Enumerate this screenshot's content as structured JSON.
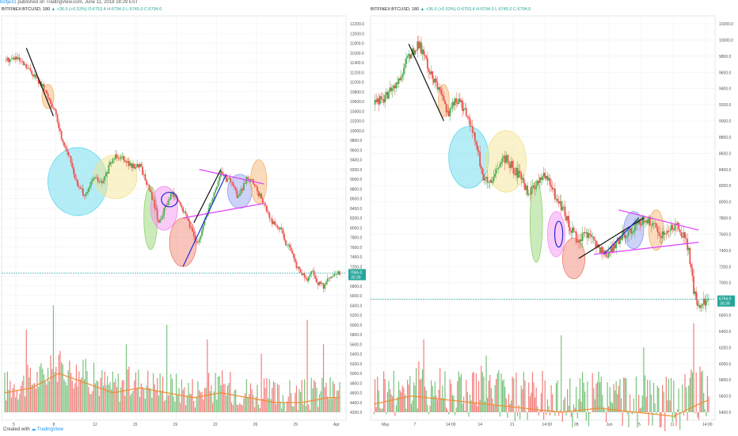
{
  "header": {
    "author": "bcltje31",
    "text": "published on TradingView.com, June 11, 2018 18:29 EST"
  },
  "colors": {
    "up": "#4caf50",
    "down": "#ef5350",
    "grid": "#eef0f3",
    "ma": "#f08c2e",
    "trend_pink": "#e040fb",
    "trend_blue": "#1e2bd6",
    "trend_black": "#111111",
    "last_line": "#26a69a",
    "ellipse_cyan": "#5ad8ee",
    "ellipse_yellow": "#f3e28a",
    "ellipse_orange": "#f5b26a",
    "ellipse_pink": "#f48cf0",
    "ellipse_green": "#8fd36a",
    "ellipse_red": "#f07c6a",
    "ellipse_purple": "#8e9cf0"
  },
  "footer": {
    "created_with": "Created with",
    "brand": "TradingView"
  },
  "chart_data": [
    {
      "type": "candlestick",
      "symbol": "BITFINEX:BTCUSD, 180",
      "change": "▲ +36.0 (+0.53%)",
      "ohlc": "O:6753.4 H:6794.0 L:6745.0 C:6794.0",
      "price_ticks": [
        "12200.0",
        "12000.0",
        "11800.0",
        "11600.0",
        "11400.0",
        "11200.0",
        "11000.0",
        "10800.0",
        "10600.0",
        "10400.0",
        "10200.0",
        "10000.0",
        "9800.0",
        "9600.0",
        "9400.0",
        "9200.0",
        "9000.0",
        "8800.0",
        "8600.0",
        "8400.0",
        "8200.0",
        "8000.0",
        "7800.0",
        "7600.0",
        "7400.0",
        "7200.0",
        "7000.0",
        "6800.0",
        "6600.0",
        "6400.0",
        "6200.0",
        "6000.0",
        "5800.0",
        "5600.0",
        "5400.0",
        "5200.0",
        "5000.0",
        "4800.0",
        "4600.0",
        "4400.0",
        "4200.0"
      ],
      "ylim": [
        6500,
        12300
      ],
      "x_labels": [
        "5",
        "8",
        "12",
        "15",
        "19",
        "22",
        "26",
        "29",
        "Apr"
      ],
      "last_price": "7066.0",
      "countdown": "30:39",
      "price_path": [
        [
          0,
          11450
        ],
        [
          4,
          11500
        ],
        [
          7,
          11350
        ],
        [
          10,
          11200
        ],
        [
          14,
          10900
        ],
        [
          17,
          10600
        ],
        [
          19,
          10300
        ],
        [
          21,
          9850
        ],
        [
          23,
          9600
        ],
        [
          25,
          9250
        ],
        [
          27,
          8850
        ],
        [
          30,
          8650
        ],
        [
          33,
          9050
        ],
        [
          36,
          8900
        ],
        [
          39,
          9300
        ],
        [
          41,
          9500
        ],
        [
          44,
          9450
        ],
        [
          47,
          9250
        ],
        [
          50,
          9300
        ],
        [
          52,
          9000
        ],
        [
          55,
          8550
        ],
        [
          57,
          8100
        ],
        [
          60,
          8500
        ],
        [
          62,
          8700
        ],
        [
          64,
          8550
        ],
        [
          66,
          8350
        ],
        [
          68,
          8150
        ],
        [
          70,
          7800
        ],
        [
          72,
          7700
        ],
        [
          74,
          8150
        ],
        [
          76,
          8500
        ],
        [
          78,
          8800
        ],
        [
          80,
          9150
        ],
        [
          82,
          9000
        ],
        [
          84,
          8950
        ],
        [
          86,
          8650
        ],
        [
          88,
          8800
        ],
        [
          90,
          9050
        ],
        [
          92,
          8900
        ],
        [
          94,
          8700
        ],
        [
          96,
          8500
        ],
        [
          98,
          8200
        ],
        [
          100,
          8050
        ],
        [
          102,
          8000
        ],
        [
          104,
          7700
        ],
        [
          106,
          7500
        ],
        [
          108,
          7200
        ],
        [
          110,
          7050
        ],
        [
          112,
          6900
        ],
        [
          114,
          7100
        ],
        [
          116,
          6850
        ],
        [
          118,
          6800
        ],
        [
          120,
          6950
        ],
        [
          122,
          7000
        ],
        [
          124,
          7066
        ]
      ],
      "volume_path": [
        [
          0,
          4600
        ],
        [
          10,
          4700
        ],
        [
          20,
          5000
        ],
        [
          30,
          4800
        ],
        [
          40,
          4600
        ],
        [
          50,
          4700
        ],
        [
          60,
          4600
        ],
        [
          70,
          4500
        ],
        [
          80,
          4600
        ],
        [
          90,
          4500
        ],
        [
          100,
          4400
        ],
        [
          110,
          4400
        ],
        [
          120,
          4500
        ],
        [
          124,
          4500
        ]
      ],
      "volume_spikes": [
        [
          8,
          5900
        ],
        [
          18,
          6400
        ],
        [
          30,
          5300
        ],
        [
          45,
          5600
        ],
        [
          60,
          6000
        ],
        [
          75,
          5700
        ],
        [
          95,
          5400
        ],
        [
          112,
          6100
        ],
        [
          118,
          5600
        ]
      ],
      "trend_lines": [
        {
          "color": "trend_black",
          "from": [
            8,
            11700
          ],
          "to": [
            18,
            10300
          ]
        },
        {
          "color": "trend_pink",
          "from": [
            72,
            9200
          ],
          "to": [
            96,
            8900
          ]
        },
        {
          "color": "trend_pink",
          "from": [
            66,
            8200
          ],
          "to": [
            96,
            8500
          ]
        },
        {
          "color": "trend_black",
          "from": [
            70,
            8100
          ],
          "to": [
            80,
            9200
          ]
        },
        {
          "color": "trend_blue",
          "from": [
            66,
            7200
          ],
          "to": [
            82,
            9100
          ]
        }
      ],
      "ellipses": [
        {
          "color": "ellipse_orange",
          "cx": 16,
          "cy": 10700,
          "rx": 2.2,
          "ry": 250
        },
        {
          "color": "ellipse_cyan",
          "cx": 27,
          "cy": 8950,
          "rx": 11,
          "ry": 700
        },
        {
          "color": "ellipse_yellow",
          "cx": 41,
          "cy": 9050,
          "rx": 8,
          "ry": 450
        },
        {
          "color": "ellipse_green",
          "cx": 54,
          "cy": 8200,
          "rx": 2.5,
          "ry": 650
        },
        {
          "color": "ellipse_pink",
          "cx": 59,
          "cy": 8400,
          "rx": 5,
          "ry": 450
        },
        {
          "color": "ellipse_red",
          "cx": 66,
          "cy": 7700,
          "rx": 5,
          "ry": 500
        },
        {
          "color": "ellipse_purple",
          "cx": 87,
          "cy": 8750,
          "rx": 4.5,
          "ry": 350
        },
        {
          "color": "ellipse_orange",
          "cx": 94,
          "cy": 8950,
          "rx": 3,
          "ry": 450
        }
      ],
      "blue_ellipse": {
        "cx": 61,
        "cy": 8580,
        "rx": 3,
        "ry": 150
      }
    },
    {
      "type": "candlestick",
      "symbol": "BITFINEX:BTCUSD, 180",
      "change": "▲ +36.0 (+0.53%)",
      "ohlc": "O:6753.4 H:6794.0 L:6745.0 C:6794.0",
      "price_ticks": [
        "10200.0",
        "10000.0",
        "9800.0",
        "9600.0",
        "9400.0",
        "9200.0",
        "9000.0",
        "8800.0",
        "8600.0",
        "8400.0",
        "8200.0",
        "8000.0",
        "7800.0",
        "7600.0",
        "7400.0",
        "7200.0",
        "7000.0",
        "6800.0",
        "6600.0",
        "6400.0",
        "6200.0",
        "6000.0",
        "5800.0",
        "5600.0",
        "5400.0"
      ],
      "ylim": [
        6400,
        10300
      ],
      "x_labels": [
        "May",
        "7",
        "14:00",
        "14",
        "21",
        "14:00",
        "28",
        "Jun",
        "5",
        "11",
        "14:00"
      ],
      "last_price": "6794.0",
      "countdown": "30:39",
      "price_path": [
        [
          0,
          9200
        ],
        [
          5,
          9300
        ],
        [
          10,
          9500
        ],
        [
          14,
          9800
        ],
        [
          18,
          9950
        ],
        [
          21,
          9750
        ],
        [
          24,
          9500
        ],
        [
          27,
          9300
        ],
        [
          30,
          9100
        ],
        [
          32,
          9250
        ],
        [
          35,
          9200
        ],
        [
          38,
          9000
        ],
        [
          41,
          8700
        ],
        [
          44,
          8300
        ],
        [
          47,
          8200
        ],
        [
          50,
          8450
        ],
        [
          53,
          8550
        ],
        [
          56,
          8400
        ],
        [
          59,
          8300
        ],
        [
          62,
          8100
        ],
        [
          65,
          8200
        ],
        [
          68,
          8350
        ],
        [
          70,
          8250
        ],
        [
          73,
          8050
        ],
        [
          76,
          7900
        ],
        [
          79,
          7650
        ],
        [
          82,
          7500
        ],
        [
          85,
          7600
        ],
        [
          88,
          7500
        ],
        [
          91,
          7400
        ],
        [
          94,
          7350
        ],
        [
          97,
          7500
        ],
        [
          100,
          7600
        ],
        [
          103,
          7650
        ],
        [
          106,
          7750
        ],
        [
          109,
          7800
        ],
        [
          112,
          7700
        ],
        [
          115,
          7600
        ],
        [
          118,
          7650
        ],
        [
          121,
          7700
        ],
        [
          124,
          7600
        ],
        [
          126,
          7400
        ],
        [
          128,
          6900
        ],
        [
          130,
          6700
        ],
        [
          132,
          6750
        ],
        [
          134,
          6794
        ]
      ],
      "volume_path": [
        [
          0,
          5500
        ],
        [
          15,
          5600
        ],
        [
          30,
          5550
        ],
        [
          45,
          5500
        ],
        [
          60,
          5450
        ],
        [
          75,
          5400
        ],
        [
          90,
          5450
        ],
        [
          105,
          5400
        ],
        [
          120,
          5350
        ],
        [
          130,
          5500
        ],
        [
          134,
          5550
        ]
      ],
      "volume_spikes": [
        [
          20,
          6300
        ],
        [
          45,
          6100
        ],
        [
          60,
          5900
        ],
        [
          75,
          6350
        ],
        [
          90,
          5900
        ],
        [
          108,
          6200
        ],
        [
          128,
          6500
        ]
      ],
      "trend_lines": [
        {
          "color": "trend_black",
          "from": [
            14,
            9950
          ],
          "to": [
            28,
            9000
          ]
        },
        {
          "color": "trend_pink",
          "from": [
            98,
            7900
          ],
          "to": [
            130,
            7650
          ]
        },
        {
          "color": "trend_pink",
          "from": [
            88,
            7350
          ],
          "to": [
            130,
            7500
          ]
        },
        {
          "color": "trend_black",
          "from": [
            82,
            7300
          ],
          "to": [
            108,
            7800
          ]
        },
        {
          "color": "trend_blue",
          "from": [
            92,
            7350
          ],
          "to": [
            106,
            7800
          ]
        }
      ],
      "ellipses": [
        {
          "color": "ellipse_orange",
          "cx": 28,
          "cy": 9250,
          "rx": 2.2,
          "ry": 200
        },
        {
          "color": "ellipse_cyan",
          "cx": 38,
          "cy": 8550,
          "rx": 8,
          "ry": 380
        },
        {
          "color": "ellipse_yellow",
          "cx": 53,
          "cy": 8500,
          "rx": 8,
          "ry": 380
        },
        {
          "color": "ellipse_green",
          "cx": 65,
          "cy": 7750,
          "rx": 2.5,
          "ry": 500
        },
        {
          "color": "ellipse_pink",
          "cx": 73,
          "cy": 7600,
          "rx": 3.5,
          "ry": 280
        },
        {
          "color": "ellipse_red",
          "cx": 80,
          "cy": 7300,
          "rx": 4.5,
          "ry": 250
        },
        {
          "color": "ellipse_purple",
          "cx": 104,
          "cy": 7650,
          "rx": 4,
          "ry": 230
        },
        {
          "color": "ellipse_orange",
          "cx": 113,
          "cy": 7650,
          "rx": 3,
          "ry": 250
        }
      ],
      "blue_ellipse": {
        "cx": 74,
        "cy": 7600,
        "rx": 1.6,
        "ry": 160
      }
    }
  ]
}
